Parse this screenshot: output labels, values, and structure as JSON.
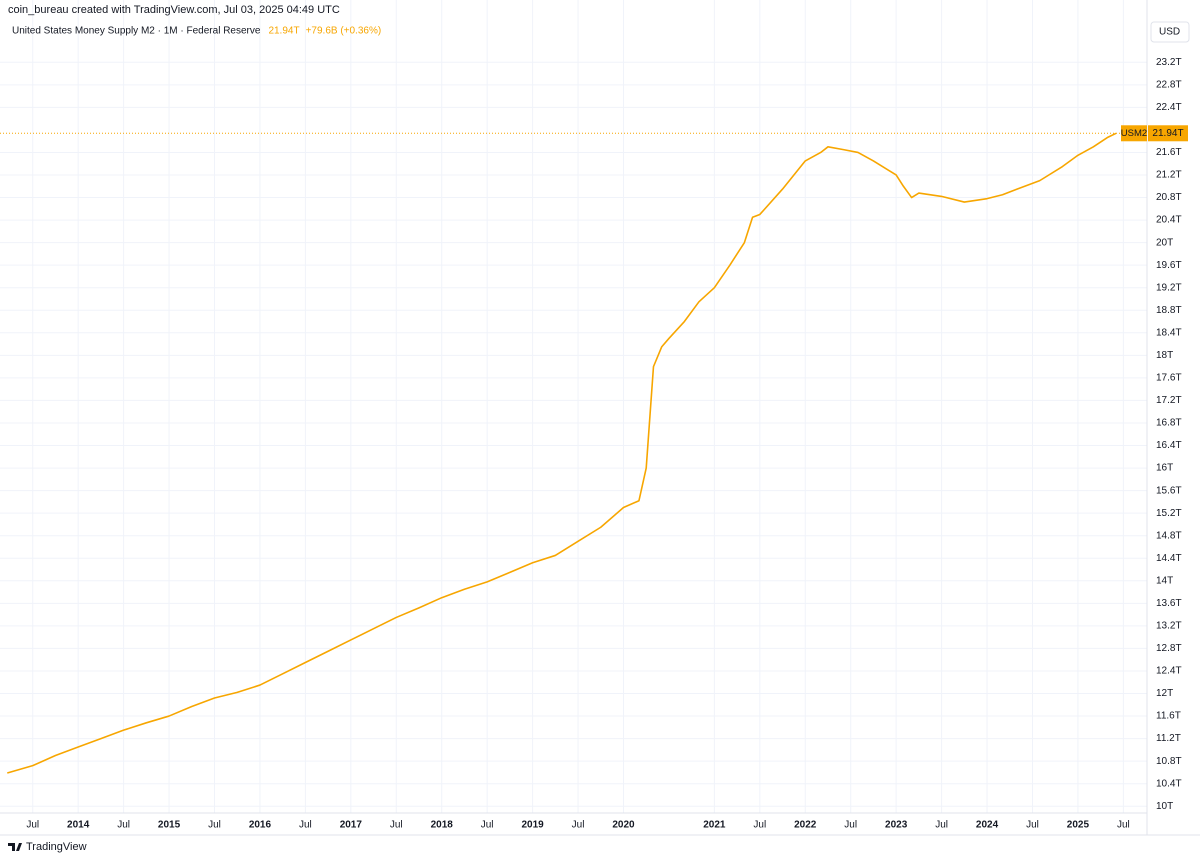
{
  "header": "coin_bureau created with TradingView.com, Jul 03, 2025 04:49 UTC",
  "footer": "TradingView",
  "chart_data": {
    "type": "line",
    "currency": "USD",
    "symbol": "USM2",
    "last_value": {
      "value": 21.94,
      "label": "21.94T"
    },
    "change": "+79.6B (+0.36%)",
    "x": [
      2013.22,
      2013.5,
      2013.75,
      2014.0,
      2014.25,
      2014.5,
      2014.75,
      2015.0,
      2015.25,
      2015.5,
      2015.75,
      2016.0,
      2016.25,
      2016.5,
      2016.75,
      2017.0,
      2017.25,
      2017.5,
      2017.75,
      2018.0,
      2018.25,
      2018.5,
      2018.75,
      2019.0,
      2019.25,
      2019.5,
      2019.75,
      2020.0,
      2020.17,
      2020.25,
      2020.33,
      2020.42,
      2020.5,
      2020.67,
      2020.83,
      2021.0,
      2021.17,
      2021.33,
      2021.42,
      2021.5,
      2021.75,
      2022.0,
      2022.17,
      2022.25,
      2022.42,
      2022.58,
      2022.75,
      2023.0,
      2023.08,
      2023.17,
      2023.25,
      2023.5,
      2023.75,
      2024.0,
      2024.17,
      2024.33,
      2024.58,
      2024.83,
      2025.0,
      2025.17,
      2025.33,
      2025.42
    ],
    "series": [
      {
        "name": "United States Money Supply M2 · 1M · Federal Reserve",
        "color": "#f7a600",
        "values": [
          10.59,
          10.72,
          10.9,
          11.05,
          11.2,
          11.35,
          11.48,
          11.6,
          11.77,
          11.92,
          12.02,
          12.15,
          12.35,
          12.55,
          12.75,
          12.95,
          13.15,
          13.35,
          13.52,
          13.7,
          13.85,
          13.98,
          14.15,
          14.32,
          14.45,
          14.7,
          14.95,
          15.3,
          15.42,
          16.0,
          17.8,
          18.15,
          18.3,
          18.6,
          18.95,
          19.2,
          19.6,
          20.0,
          20.45,
          20.5,
          20.95,
          21.45,
          21.6,
          21.7,
          21.65,
          21.6,
          21.45,
          21.2,
          21.0,
          20.8,
          20.88,
          20.82,
          20.72,
          20.78,
          20.85,
          20.95,
          21.1,
          21.35,
          21.55,
          21.7,
          21.87,
          21.94
        ]
      }
    ],
    "xlim": [
      2013.14,
      2025.76
    ],
    "ylim": [
      9.88,
      23.95
    ],
    "xticks": [
      {
        "value": 2013.5,
        "label": "Jul"
      },
      {
        "value": 2014,
        "label": "2014"
      },
      {
        "value": 2014.5,
        "label": "Jul"
      },
      {
        "value": 2015,
        "label": "2015"
      },
      {
        "value": 2015.5,
        "label": "Jul"
      },
      {
        "value": 2016,
        "label": "2016"
      },
      {
        "value": 2016.5,
        "label": "Jul"
      },
      {
        "value": 2017,
        "label": "2017"
      },
      {
        "value": 2017.5,
        "label": "Jul"
      },
      {
        "value": 2018,
        "label": "2018"
      },
      {
        "value": 2018.5,
        "label": "Jul"
      },
      {
        "value": 2019,
        "label": "2019"
      },
      {
        "value": 2019.5,
        "label": "Jul"
      },
      {
        "value": 2020,
        "label": "2020"
      },
      {
        "value": 2021,
        "label": "2021"
      },
      {
        "value": 2021.5,
        "label": "Jul"
      },
      {
        "value": 2022,
        "label": "2022"
      },
      {
        "value": 2022.5,
        "label": "Jul"
      },
      {
        "value": 2023,
        "label": "2023"
      },
      {
        "value": 2023.5,
        "label": "Jul"
      },
      {
        "value": 2024,
        "label": "2024"
      },
      {
        "value": 2024.5,
        "label": "Jul"
      },
      {
        "value": 2025,
        "label": "2025"
      },
      {
        "value": 2025.5,
        "label": "Jul"
      }
    ],
    "yticks": [
      {
        "value": 10,
        "label": "10T"
      },
      {
        "value": 10.4,
        "label": "10.4T"
      },
      {
        "value": 10.8,
        "label": "10.8T"
      },
      {
        "value": 11.2,
        "label": "11.2T"
      },
      {
        "value": 11.6,
        "label": "11.6T"
      },
      {
        "value": 12,
        "label": "12T"
      },
      {
        "value": 12.4,
        "label": "12.4T"
      },
      {
        "value": 12.8,
        "label": "12.8T"
      },
      {
        "value": 13.2,
        "label": "13.2T"
      },
      {
        "value": 13.6,
        "label": "13.6T"
      },
      {
        "value": 14,
        "label": "14T"
      },
      {
        "value": 14.4,
        "label": "14.4T"
      },
      {
        "value": 14.8,
        "label": "14.8T"
      },
      {
        "value": 15.2,
        "label": "15.2T"
      },
      {
        "value": 15.6,
        "label": "15.6T"
      },
      {
        "value": 16,
        "label": "16T"
      },
      {
        "value": 16.4,
        "label": "16.4T"
      },
      {
        "value": 16.8,
        "label": "16.8T"
      },
      {
        "value": 17.2,
        "label": "17.2T"
      },
      {
        "value": 17.6,
        "label": "17.6T"
      },
      {
        "value": 18,
        "label": "18T"
      },
      {
        "value": 18.4,
        "label": "18.4T"
      },
      {
        "value": 18.8,
        "label": "18.8T"
      },
      {
        "value": 19.2,
        "label": "19.2T"
      },
      {
        "value": 19.6,
        "label": "19.6T"
      },
      {
        "value": 20,
        "label": "20T"
      },
      {
        "value": 20.4,
        "label": "20.4T"
      },
      {
        "value": 20.8,
        "label": "20.8T"
      },
      {
        "value": 21.2,
        "label": "21.2T"
      },
      {
        "value": 21.6,
        "label": "21.6T"
      },
      {
        "value": 22.4,
        "label": "22.4T"
      },
      {
        "value": 22.8,
        "label": "22.8T"
      },
      {
        "value": 23.2,
        "label": "23.2T"
      }
    ],
    "grid": true
  }
}
